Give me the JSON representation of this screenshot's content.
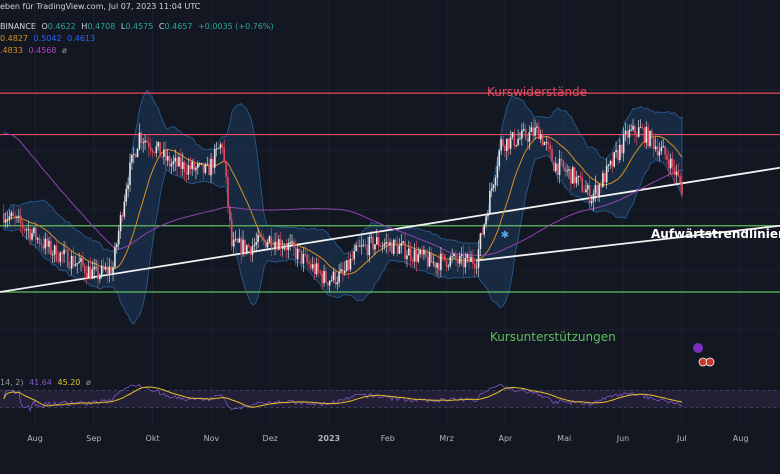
{
  "header": {
    "published": "eben für TradingView.com, Jul 07, 2023 11:04 UTC",
    "exchange": "BINANCE",
    "ohlc": {
      "o_label": "O",
      "o": "0.4622",
      "h_label": "H",
      "h": "0.4708",
      "l_label": "L",
      "l": "0.4575",
      "c_label": "C",
      "c": "0.4657",
      "change": "+0.0035 (+0.76%)"
    },
    "bb_values": [
      "0.4827",
      "0.5042",
      "0.4613"
    ],
    "ma_values": [
      ".4833",
      "0.4568",
      "ø"
    ],
    "rsi_legend": {
      "params": "14, 2)",
      "v1": "41.64",
      "v2": "45.20",
      "sym": "ø"
    }
  },
  "colors": {
    "background": "#131722",
    "grid": "#1e2230",
    "resistance": "#e84a5f",
    "support": "#5fbf5f",
    "trendline": "#f2f2f2",
    "bb_fill": "#1b3a5c",
    "bb_line": "#2a5f95",
    "ma_fast": "#d98e1f",
    "ma_slow": "#8e44ad",
    "candle_up": "#e6e6e6",
    "candle_down": "#e84a5f",
    "rsi_line": "#7e57c2",
    "rsi_ma": "#e6c229",
    "rsi_band": "#2a2340"
  },
  "annotations": {
    "resistance_label": "Kurswiderstände",
    "trend_label": "Aufwärtstrendlinien",
    "support_label": "Kursunterstützungen"
  },
  "chart_data": {
    "type": "candlestick",
    "x_ticks": [
      "Aug",
      "Sep",
      "Okt",
      "Nov",
      "Dez",
      "2023",
      "Feb",
      "Mrz",
      "Apr",
      "Mai",
      "Jun",
      "Jul",
      "Aug"
    ],
    "x_range": [
      "2022-07-10",
      "2023-08-28"
    ],
    "y_range": [
      0.27,
      0.62
    ],
    "resistance_levels": [
      0.58,
      0.53
    ],
    "support_levels": [
      0.42,
      0.34
    ],
    "trendlines": [
      {
        "from": [
          "2022-07-10",
          0.34
        ],
        "to": [
          "2023-08-28",
          0.49
        ]
      },
      {
        "from": [
          "2023-03-20",
          0.378
        ],
        "to": [
          "2023-08-28",
          0.42
        ]
      }
    ],
    "close_path": [
      [
        "2022-07-12",
        0.435
      ],
      [
        "2022-07-25",
        0.415
      ],
      [
        "2022-08-06",
        0.39
      ],
      [
        "2022-08-20",
        0.375
      ],
      [
        "2022-08-30",
        0.36
      ],
      [
        "2022-09-08",
        0.37
      ],
      [
        "2022-09-15",
        0.47
      ],
      [
        "2022-09-22",
        0.53
      ],
      [
        "2022-09-30",
        0.515
      ],
      [
        "2022-10-08",
        0.495
      ],
      [
        "2022-10-18",
        0.49
      ],
      [
        "2022-10-28",
        0.485
      ],
      [
        "2022-11-05",
        0.52
      ],
      [
        "2022-11-10",
        0.395
      ],
      [
        "2022-11-20",
        0.395
      ],
      [
        "2022-12-01",
        0.405
      ],
      [
        "2022-12-10",
        0.395
      ],
      [
        "2022-12-20",
        0.375
      ],
      [
        "2022-12-30",
        0.355
      ],
      [
        "2023-01-08",
        0.36
      ],
      [
        "2023-01-16",
        0.39
      ],
      [
        "2023-01-26",
        0.4
      ],
      [
        "2023-02-05",
        0.395
      ],
      [
        "2023-02-15",
        0.385
      ],
      [
        "2023-02-25",
        0.375
      ],
      [
        "2023-03-05",
        0.38
      ],
      [
        "2023-03-12",
        0.375
      ],
      [
        "2023-03-20",
        0.38
      ],
      [
        "2023-03-26",
        0.445
      ],
      [
        "2023-04-02",
        0.52
      ],
      [
        "2023-04-12",
        0.525
      ],
      [
        "2023-04-22",
        0.535
      ],
      [
        "2023-04-30",
        0.495
      ],
      [
        "2023-05-10",
        0.48
      ],
      [
        "2023-05-20",
        0.455
      ],
      [
        "2023-05-30",
        0.49
      ],
      [
        "2023-06-08",
        0.53
      ],
      [
        "2023-06-15",
        0.535
      ],
      [
        "2023-06-22",
        0.52
      ],
      [
        "2023-06-30",
        0.5
      ],
      [
        "2023-07-07",
        0.4657
      ]
    ],
    "rsi": {
      "y_range": [
        0,
        100
      ],
      "bands": [
        30,
        70
      ],
      "last": 41.64,
      "ma_last": 45.2
    }
  }
}
